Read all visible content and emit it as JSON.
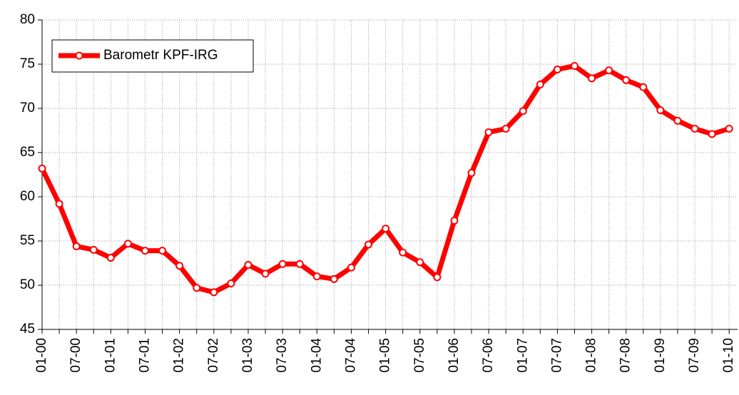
{
  "chart_data": {
    "type": "line",
    "categories": [
      "01-00",
      null,
      "07-00",
      null,
      "01-01",
      null,
      "07-01",
      null,
      "01-02",
      null,
      "07-02",
      null,
      "01-03",
      null,
      "07-03",
      null,
      "01-04",
      null,
      "07-04",
      null,
      "01-05",
      null,
      "07-05",
      null,
      "01-06",
      null,
      "07-06",
      null,
      "01-07",
      null,
      "07-07",
      null,
      "01-08",
      null,
      "07-08",
      null,
      "01-09",
      null,
      "07-09",
      null,
      "01-10"
    ],
    "series": [
      {
        "name": "Barometr KPF-IRG",
        "color": "#ff0000",
        "values": [
          63.2,
          59.2,
          54.4,
          54.0,
          53.1,
          54.7,
          53.9,
          53.9,
          52.2,
          49.7,
          49.2,
          50.2,
          52.3,
          51.3,
          52.4,
          52.4,
          51.0,
          50.7,
          52.0,
          54.6,
          56.4,
          53.7,
          52.6,
          50.9,
          57.3,
          62.7,
          67.3,
          67.7,
          69.7,
          72.7,
          74.4,
          74.8,
          73.4,
          74.3,
          73.2,
          72.4,
          69.8,
          68.6,
          67.7,
          67.1,
          67.7
        ]
      }
    ],
    "ylim": [
      45,
      80
    ],
    "yticks": [
      45,
      50,
      55,
      60,
      65,
      70,
      75,
      80
    ],
    "grid": true,
    "legend": "top-left"
  }
}
